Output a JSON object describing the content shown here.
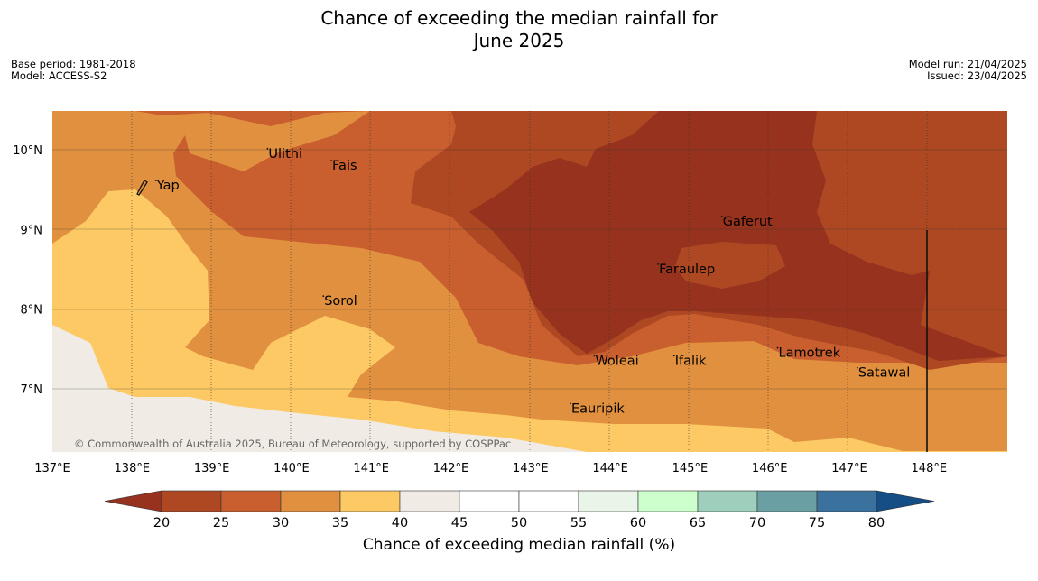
{
  "title": {
    "line1": "Chance of exceeding the median rainfall for",
    "line2": "June 2025"
  },
  "meta_left": {
    "base_period": "Base period: 1981-2018",
    "model": "Model: ACCESS-S2"
  },
  "meta_right": {
    "model_run": "Model run: 21/04/2025",
    "issued": "Issued: 23/04/2025"
  },
  "map": {
    "lon_labels": [
      "137°E",
      "138°E",
      "139°E",
      "140°E",
      "141°E",
      "142°E",
      "143°E",
      "144°E",
      "145°E",
      "146°E",
      "147°E",
      "148°E"
    ],
    "lat_labels": [
      "10°N",
      "9°N",
      "8°N",
      "7°N"
    ],
    "places": [
      {
        "name": "Yap",
        "lon": 138.3,
        "lat": 9.5
      },
      {
        "name": "Ulithi",
        "lon": 139.7,
        "lat": 9.9
      },
      {
        "name": "Fais",
        "lon": 140.5,
        "lat": 9.75
      },
      {
        "name": "Gaferut",
        "lon": 145.4,
        "lat": 9.05
      },
      {
        "name": "Faraulep",
        "lon": 144.6,
        "lat": 8.45
      },
      {
        "name": "Sorol",
        "lon": 140.4,
        "lat": 8.05
      },
      {
        "name": "Lamotrek",
        "lon": 146.1,
        "lat": 7.4
      },
      {
        "name": "Woleai",
        "lon": 143.8,
        "lat": 7.3
      },
      {
        "name": "Ifalik",
        "lon": 144.8,
        "lat": 7.3
      },
      {
        "name": "Satawal",
        "lon": 147.1,
        "lat": 7.15
      },
      {
        "name": "Eauripik",
        "lon": 143.5,
        "lat": 6.7
      }
    ],
    "copyright": "© Commonwealth of Australia 2025, Bureau of Meteorology, supported by COSPPac"
  },
  "colorbar": {
    "ticks": [
      "20",
      "25",
      "30",
      "35",
      "40",
      "45",
      "50",
      "55",
      "60",
      "65",
      "70",
      "75",
      "80"
    ],
    "colors": [
      "#ad4823",
      "#c95f2e",
      "#e0903f",
      "#fdc965",
      "#f0ebe5",
      "#ffffff",
      "#ffffff",
      "#eaf5e9",
      "#ccffcc",
      "#9ecfbc",
      "#6aa0a3",
      "#3a729d"
    ],
    "under_color": "#96321e",
    "over_color": "#154d85",
    "label": "Chance of exceeding median rainfall (%)"
  }
}
